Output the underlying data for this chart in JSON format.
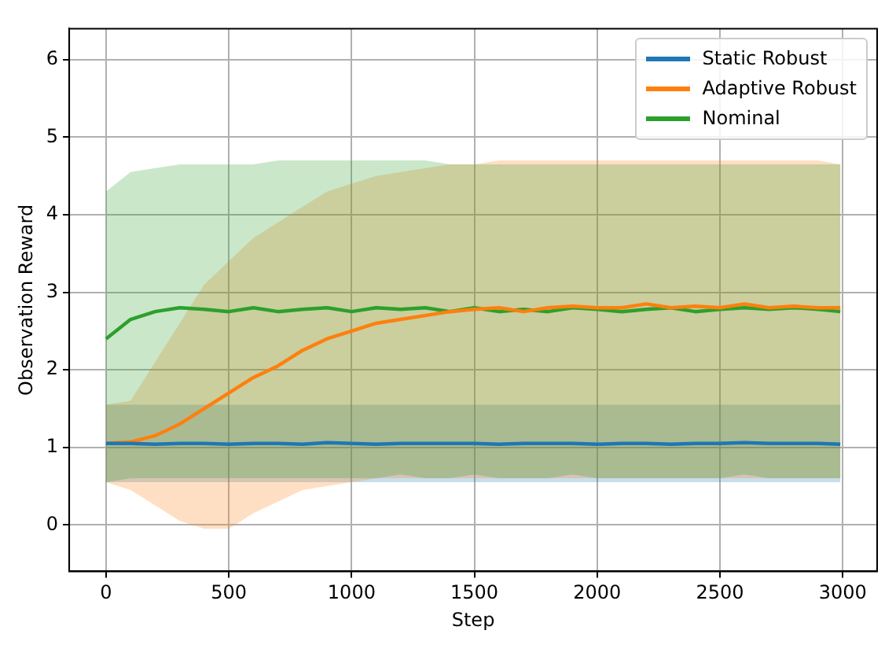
{
  "chart_data": {
    "type": "line",
    "xlabel": "Step",
    "ylabel": "Observation Reward",
    "x": [
      0,
      100,
      200,
      300,
      400,
      500,
      600,
      700,
      800,
      900,
      1000,
      1100,
      1200,
      1300,
      1400,
      1500,
      1600,
      1700,
      1800,
      1900,
      2000,
      2100,
      2200,
      2300,
      2400,
      2500,
      2600,
      2700,
      2800,
      2900,
      2990
    ],
    "series": [
      {
        "name": "Static Robust",
        "color": "#1f77b4",
        "values": [
          1.05,
          1.05,
          1.04,
          1.05,
          1.05,
          1.04,
          1.05,
          1.05,
          1.04,
          1.06,
          1.05,
          1.04,
          1.05,
          1.05,
          1.05,
          1.05,
          1.04,
          1.05,
          1.05,
          1.05,
          1.04,
          1.05,
          1.05,
          1.04,
          1.05,
          1.05,
          1.06,
          1.05,
          1.05,
          1.05,
          1.04
        ],
        "lower": [
          0.55,
          0.55,
          0.55,
          0.55,
          0.55,
          0.55,
          0.55,
          0.55,
          0.55,
          0.55,
          0.55,
          0.55,
          0.55,
          0.55,
          0.55,
          0.55,
          0.55,
          0.55,
          0.55,
          0.55,
          0.55,
          0.55,
          0.55,
          0.55,
          0.55,
          0.55,
          0.55,
          0.55,
          0.55,
          0.55,
          0.55
        ],
        "upper": [
          1.55,
          1.55,
          1.55,
          1.55,
          1.55,
          1.55,
          1.55,
          1.55,
          1.55,
          1.55,
          1.55,
          1.55,
          1.55,
          1.55,
          1.55,
          1.55,
          1.55,
          1.55,
          1.55,
          1.55,
          1.55,
          1.55,
          1.55,
          1.55,
          1.55,
          1.55,
          1.55,
          1.55,
          1.55,
          1.55,
          1.55
        ]
      },
      {
        "name": "Adaptive Robust",
        "color": "#ff7f0e",
        "values": [
          1.05,
          1.07,
          1.15,
          1.3,
          1.5,
          1.7,
          1.9,
          2.05,
          2.25,
          2.4,
          2.5,
          2.6,
          2.65,
          2.7,
          2.75,
          2.78,
          2.8,
          2.75,
          2.8,
          2.82,
          2.8,
          2.8,
          2.85,
          2.8,
          2.82,
          2.8,
          2.85,
          2.8,
          2.82,
          2.8,
          2.8
        ],
        "lower": [
          0.55,
          0.45,
          0.25,
          0.05,
          -0.05,
          -0.05,
          0.15,
          0.3,
          0.45,
          0.5,
          0.55,
          0.6,
          0.6,
          0.6,
          0.6,
          0.6,
          0.6,
          0.6,
          0.6,
          0.6,
          0.6,
          0.6,
          0.6,
          0.6,
          0.6,
          0.6,
          0.6,
          0.6,
          0.6,
          0.6,
          0.6
        ],
        "upper": [
          1.55,
          1.6,
          2.1,
          2.6,
          3.1,
          3.4,
          3.7,
          3.9,
          4.1,
          4.3,
          4.4,
          4.5,
          4.55,
          4.6,
          4.65,
          4.65,
          4.7,
          4.7,
          4.7,
          4.7,
          4.7,
          4.7,
          4.7,
          4.7,
          4.7,
          4.7,
          4.7,
          4.7,
          4.7,
          4.7,
          4.65
        ]
      },
      {
        "name": "Nominal",
        "color": "#2ca02c",
        "values": [
          2.4,
          2.65,
          2.75,
          2.8,
          2.78,
          2.75,
          2.8,
          2.75,
          2.78,
          2.8,
          2.75,
          2.8,
          2.78,
          2.8,
          2.75,
          2.8,
          2.75,
          2.78,
          2.75,
          2.8,
          2.78,
          2.75,
          2.78,
          2.8,
          2.75,
          2.78,
          2.8,
          2.78,
          2.8,
          2.78,
          2.75
        ],
        "lower": [
          0.55,
          0.6,
          0.6,
          0.6,
          0.6,
          0.6,
          0.6,
          0.6,
          0.6,
          0.6,
          0.6,
          0.6,
          0.65,
          0.6,
          0.6,
          0.65,
          0.6,
          0.6,
          0.6,
          0.65,
          0.6,
          0.6,
          0.6,
          0.6,
          0.6,
          0.6,
          0.65,
          0.6,
          0.6,
          0.6,
          0.6
        ],
        "upper": [
          4.3,
          4.55,
          4.6,
          4.65,
          4.65,
          4.65,
          4.65,
          4.7,
          4.7,
          4.7,
          4.7,
          4.7,
          4.7,
          4.7,
          4.65,
          4.65,
          4.65,
          4.65,
          4.65,
          4.65,
          4.65,
          4.65,
          4.65,
          4.65,
          4.65,
          4.65,
          4.65,
          4.65,
          4.65,
          4.65,
          4.65
        ]
      }
    ],
    "xlim": [
      -150,
      3140
    ],
    "ylim": [
      -0.6,
      6.4
    ],
    "xticks": [
      0,
      500,
      1000,
      1500,
      2000,
      2500,
      3000
    ],
    "yticks": [
      0,
      1,
      2,
      3,
      4,
      5,
      6
    ],
    "grid": true,
    "legend": "top right",
    "marker": "none",
    "line_style": "solid"
  }
}
